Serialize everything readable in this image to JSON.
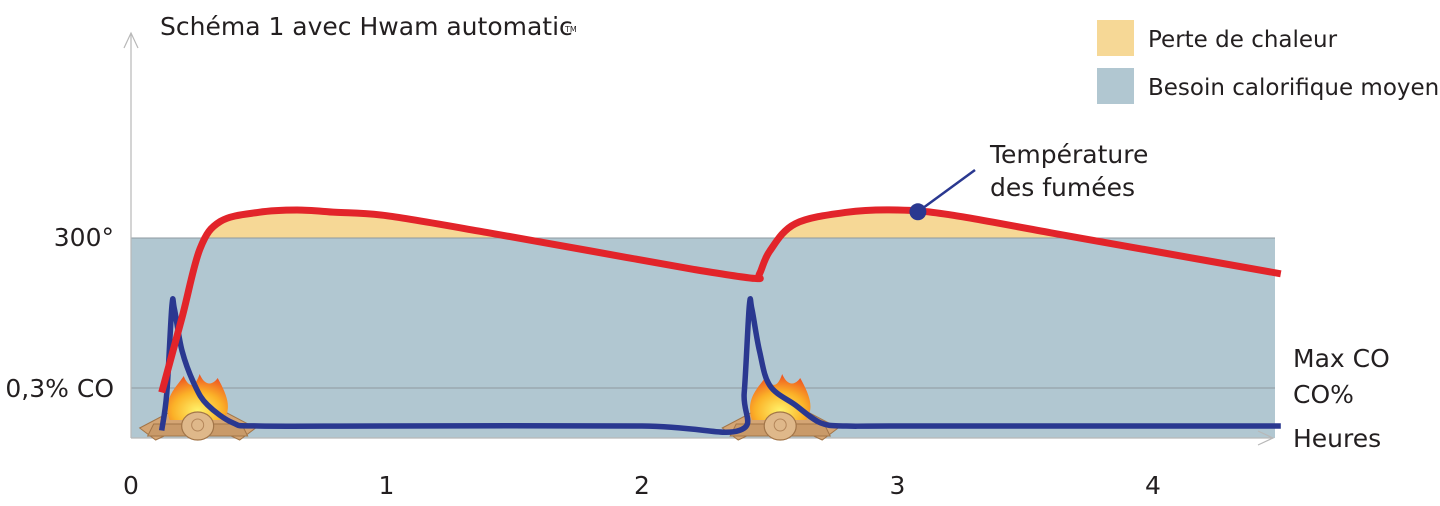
{
  "chart_data": {
    "type": "line",
    "title": "Schéma 1 avec Hwam automatic",
    "title_trademark": "TM",
    "xlabel": "Heures",
    "xticks": [
      "0",
      "1",
      "2",
      "3",
      "4"
    ],
    "xlim": [
      0,
      4.5
    ],
    "y_reference_labels": {
      "temperature_300": "300°",
      "co_threshold": "0,3% CO"
    },
    "right_labels": [
      "Max CO",
      "CO%"
    ],
    "legend": [
      {
        "label": "Perte de chaleur",
        "color": "#f6d896"
      },
      {
        "label": "Besoin calorifique moyen",
        "color": "#b1c7d1"
      }
    ],
    "series": [
      {
        "name": "Température des fumées",
        "color": "#e2242a",
        "x": [
          0.12,
          0.2,
          0.27,
          0.35,
          0.5,
          0.65,
          0.8,
          1.0,
          1.4,
          1.8,
          2.2,
          2.44,
          2.46,
          2.5,
          2.6,
          2.8,
          3.0,
          3.2,
          3.6,
          4.0,
          4.5
        ],
        "y": [
          0.2,
          0.53,
          0.83,
          0.95,
          0.99,
          1.0,
          0.99,
          0.975,
          0.9,
          0.82,
          0.74,
          0.7,
          0.72,
          0.82,
          0.94,
          0.99,
          1.0,
          0.98,
          0.9,
          0.82,
          0.72
        ]
      },
      {
        "name": "CO%",
        "color": "#2a3890",
        "x": [
          0.12,
          0.14,
          0.16,
          0.17,
          0.2,
          0.25,
          0.3,
          0.4,
          0.5,
          1.0,
          2.0,
          2.38,
          2.4,
          2.42,
          2.43,
          2.46,
          2.5,
          2.6,
          2.7,
          2.8,
          3.0,
          4.0,
          4.5
        ],
        "y": [
          0.05,
          0.3,
          0.88,
          0.86,
          0.58,
          0.35,
          0.22,
          0.1,
          0.08,
          0.08,
          0.08,
          0.05,
          0.3,
          0.88,
          0.86,
          0.58,
          0.35,
          0.22,
          0.1,
          0.08,
          0.08,
          0.08,
          0.08
        ]
      }
    ],
    "fires_at_hours": [
      0.12,
      2.4
    ],
    "annotation": {
      "series": "Température des fumées",
      "text_lines": [
        "Température",
        "des fumées"
      ],
      "marker_x": 3.08
    }
  }
}
